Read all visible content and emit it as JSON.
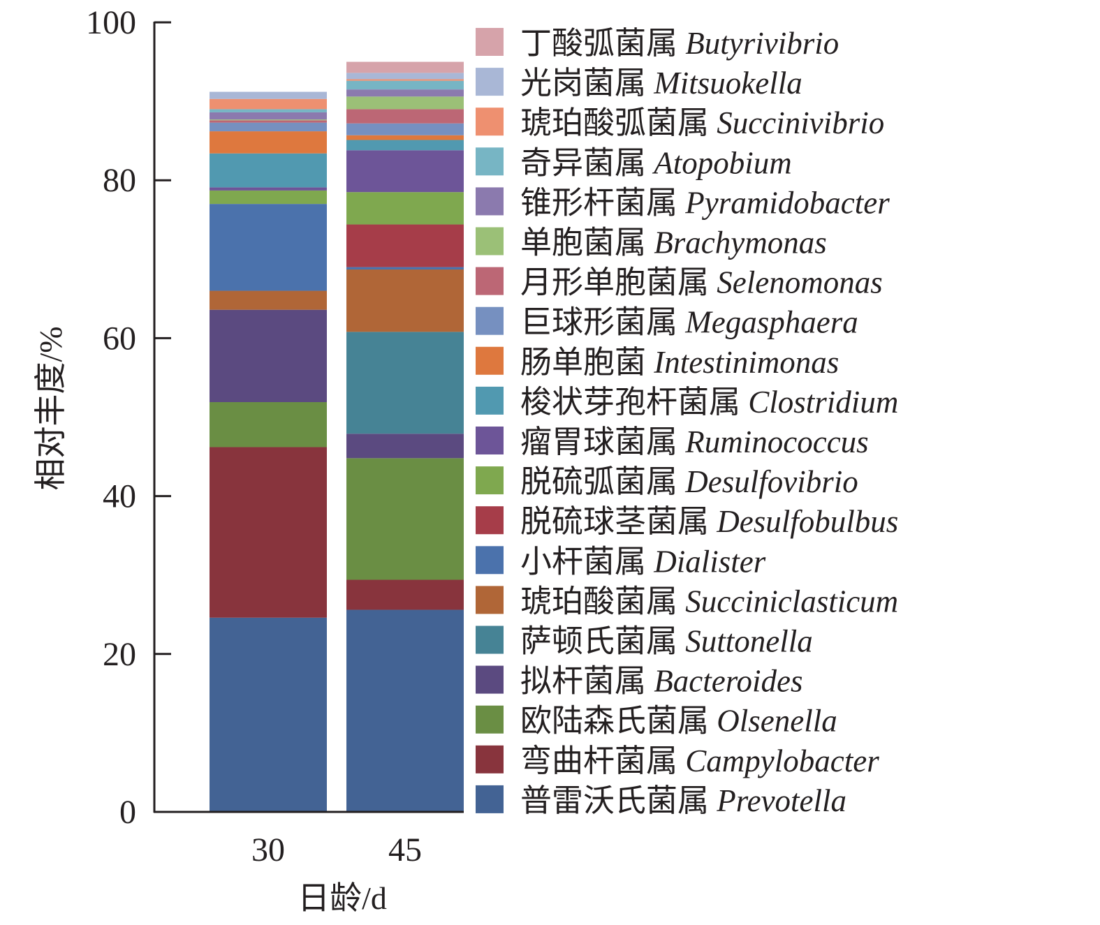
{
  "chart_data": {
    "type": "bar",
    "stacked": true,
    "title": "",
    "xlabel": "日龄/d",
    "ylabel": "相对丰度/%",
    "ylim": [
      0,
      100
    ],
    "yticks": [
      "0",
      "20",
      "40",
      "60",
      "80",
      "100"
    ],
    "categories": [
      "30",
      "45"
    ],
    "legend_position": "right",
    "series": [
      {
        "name_cn": "普雷沃氏菌属",
        "name_latin": "Prevotella",
        "color": "#436394",
        "values": [
          24.6,
          25.6
        ]
      },
      {
        "name_cn": "弯曲杆菌属",
        "name_latin": "Campylobacter",
        "color": "#88343d",
        "values": [
          21.6,
          3.8
        ]
      },
      {
        "name_cn": "欧陆森氏菌属",
        "name_latin": "Olsenella",
        "color": "#6a8e44",
        "values": [
          5.7,
          15.4
        ]
      },
      {
        "name_cn": "拟杆菌属",
        "name_latin": "Bacteroides",
        "color": "#5b4a80",
        "values": [
          11.7,
          3.1
        ]
      },
      {
        "name_cn": "萨顿氏菌属",
        "name_latin": "Suttonella",
        "color": "#468395",
        "values": [
          0,
          12.9
        ]
      },
      {
        "name_cn": "琥珀酸菌属",
        "name_latin": "Succiniclasticum",
        "color": "#b06637",
        "values": [
          2.4,
          7.9
        ]
      },
      {
        "name_cn": "小杆菌属",
        "name_latin": "Dialister",
        "color": "#4b72ac",
        "values": [
          11.0,
          0.3
        ]
      },
      {
        "name_cn": "脱硫球茎菌属",
        "name_latin": "Desulfobulbus",
        "color": "#a63d49",
        "values": [
          0,
          5.4
        ]
      },
      {
        "name_cn": "脱硫弧菌属",
        "name_latin": "Desulfovibrio",
        "color": "#7fa84f",
        "values": [
          1.7,
          4.1
        ]
      },
      {
        "name_cn": "瘤胃球菌属",
        "name_latin": "Ruminococcus",
        "color": "#6d5598",
        "values": [
          0.4,
          5.3
        ]
      },
      {
        "name_cn": "梭状芽孢杆菌属",
        "name_latin": "Clostridium",
        "color": "#5199b0",
        "values": [
          4.3,
          1.3
        ]
      },
      {
        "name_cn": "肠单胞菌",
        "name_latin": "Intestinimonas",
        "color": "#de783e",
        "values": [
          2.8,
          0.6
        ]
      },
      {
        "name_cn": "巨球形菌属",
        "name_latin": "Megasphaera",
        "color": "#7690c0",
        "values": [
          1.1,
          1.5
        ]
      },
      {
        "name_cn": "月形单胞菌属",
        "name_latin": "Selenomonas",
        "color": "#bc6775",
        "values": [
          0.3,
          1.8
        ]
      },
      {
        "name_cn": "单胞菌属",
        "name_latin": "Brachymonas",
        "color": "#9bc077",
        "values": [
          0.1,
          1.6
        ]
      },
      {
        "name_cn": "锥形杆菌属",
        "name_latin": "Pyramidobacter",
        "color": "#8b7aae",
        "values": [
          0.9,
          0.9
        ]
      },
      {
        "name_cn": "奇异菌属",
        "name_latin": "Atopobium",
        "color": "#77b5c4",
        "values": [
          0.4,
          1.1
        ]
      },
      {
        "name_cn": "琥珀酸弧菌属",
        "name_latin": "Succinivibrio",
        "color": "#ee9070",
        "values": [
          1.3,
          0.2
        ]
      },
      {
        "name_cn": "光岗菌属",
        "name_latin": "Mitsuokella",
        "color": "#a9b7d6",
        "values": [
          0.9,
          0.8
        ]
      },
      {
        "name_cn": "丁酸弧菌属",
        "name_latin": "Butyrivibrio",
        "color": "#d6a3aa",
        "values": [
          0,
          1.4
        ]
      }
    ]
  }
}
